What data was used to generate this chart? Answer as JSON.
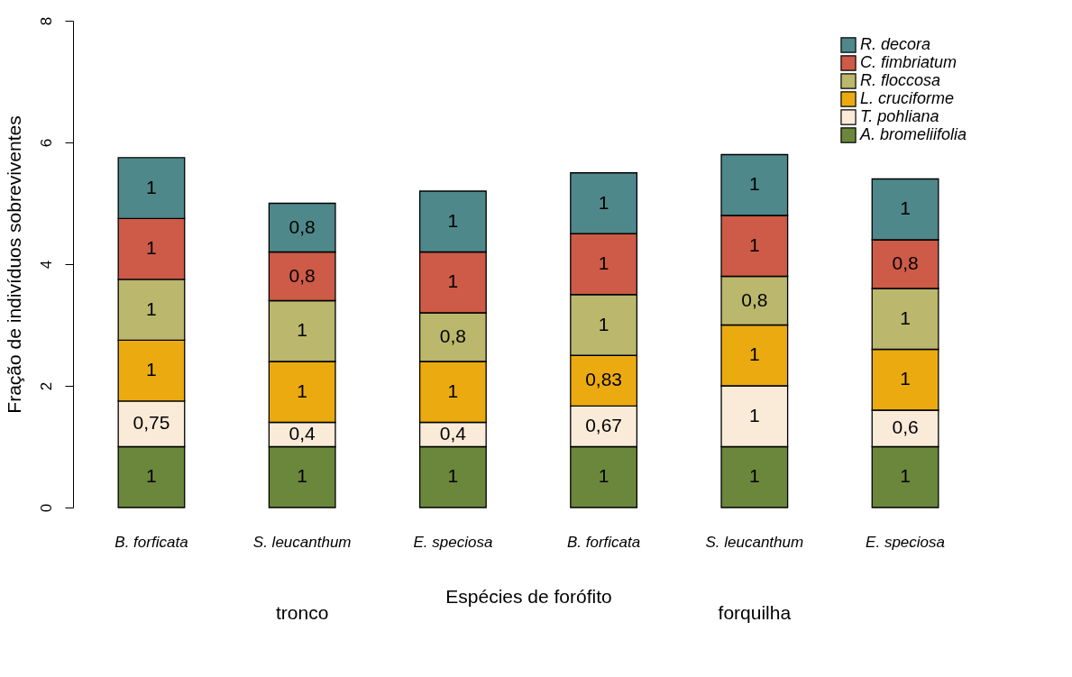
{
  "chart_data": {
    "type": "bar",
    "stacked": true,
    "ylabel": "Fração de indivíduos sobreviventes",
    "xlabel": "Espécies de forófito",
    "categories": [
      "B. forficata",
      "S. leucanthum",
      "E. speciosa",
      "B. forficata",
      "S. leucanthum",
      "E. speciosa"
    ],
    "series": [
      {
        "name": "A. bromeliifolia",
        "color": "#6a873b",
        "values": [
          1,
          1,
          1,
          1,
          1,
          1
        ],
        "value_labels": [
          "1",
          "1",
          "1",
          "1",
          "1",
          "1"
        ]
      },
      {
        "name": "T. pohliana",
        "color": "#faebd9",
        "values": [
          0.75,
          0.4,
          0.4,
          0.67,
          1,
          0.6
        ],
        "value_labels": [
          "0,75",
          "0,4",
          "0,4",
          "0,67",
          "1",
          "0,6"
        ]
      },
      {
        "name": "L. cruciforme",
        "color": "#ebab10",
        "values": [
          1,
          1,
          1,
          0.83,
          1,
          1
        ],
        "value_labels": [
          "1",
          "1",
          "1",
          "0,83",
          "1",
          "1"
        ]
      },
      {
        "name": "R. floccosa",
        "color": "#bbb76c",
        "values": [
          1,
          1,
          0.8,
          1,
          0.8,
          1
        ],
        "value_labels": [
          "1",
          "1",
          "0,8",
          "1",
          "0,8",
          "1"
        ]
      },
      {
        "name": "C. fimbriatum",
        "color": "#cd5b47",
        "values": [
          1,
          0.8,
          1,
          1,
          1,
          0.8
        ],
        "value_labels": [
          "1",
          "0,8",
          "1",
          "1",
          "1",
          "0,8"
        ]
      },
      {
        "name": "R. decora",
        "color": "#4e888a",
        "values": [
          1,
          0.8,
          1,
          1,
          1,
          1
        ],
        "value_labels": [
          "1",
          "0,8",
          "1",
          "1",
          "1",
          "1"
        ]
      }
    ],
    "annotations": [
      "tronco",
      "forquilha"
    ],
    "ylim": [
      0,
      8
    ],
    "yticks": [
      0,
      2,
      4,
      6,
      8
    ],
    "grid": false,
    "legend": "top right"
  }
}
